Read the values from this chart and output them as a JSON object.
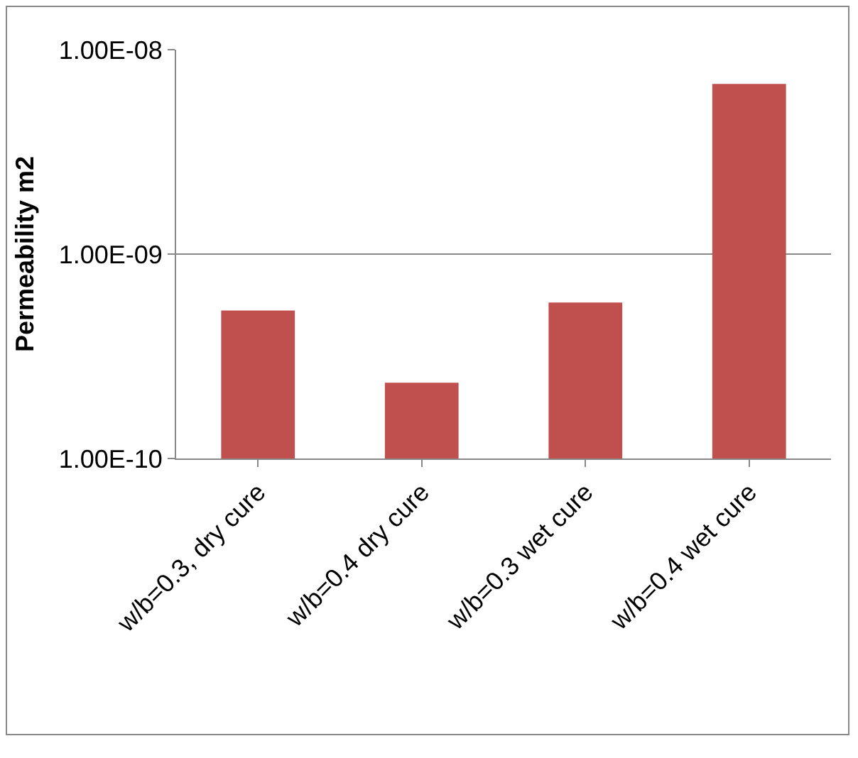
{
  "chart_data": {
    "type": "bar",
    "ylabel": "Permeability m2",
    "categories": [
      "w/b=0.3, dry cure",
      "w/b=0.4 dry cure",
      "w/b=0.3 wet cure",
      "w/b=0.4 wet cure"
    ],
    "values": [
      5.3e-10,
      2.35e-10,
      5.8e-10,
      6.8e-09
    ],
    "color": "#c0504d",
    "log": true,
    "ylim": [
      1e-10,
      1e-08
    ],
    "yticks": [
      {
        "value": 1e-10,
        "label": "1.00E-10"
      },
      {
        "value": 1e-09,
        "label": "1.00E-09"
      },
      {
        "value": 1e-08,
        "label": "1.00E-08"
      }
    ],
    "grid": "y"
  }
}
